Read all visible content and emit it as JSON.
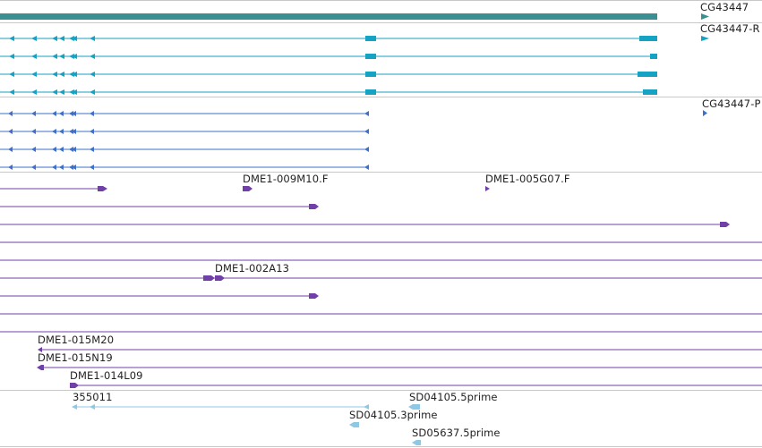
{
  "colors": {
    "gene": "#3a8f92",
    "mrna": "#16a2c2",
    "cds": "#3d70c9",
    "est": "#7040a8",
    "cdna": "#8ec8e4",
    "track_divider": "#c8c8c8",
    "label_text": "#222222"
  },
  "labels": {
    "gene": "CG43447",
    "mrna": "CG43447-R",
    "cds": "CG43447-P",
    "est_1": "DME1-009M10.F",
    "est_2": "DME1-005G07.F",
    "est_3": "DME1-002A13",
    "est_4": "DME1-015M20",
    "est_5": "DME1-015N19",
    "est_6": "DME1-014L09",
    "cdna_1": "355011",
    "cdna_2": "SD04105.5prime",
    "cdna_3": "SD04105.3prime",
    "cdna_4": "SD05637.5prime"
  },
  "icons": {
    "strand_minus": "chevron-left-icon",
    "strand_plus": "chevron-right-icon"
  }
}
